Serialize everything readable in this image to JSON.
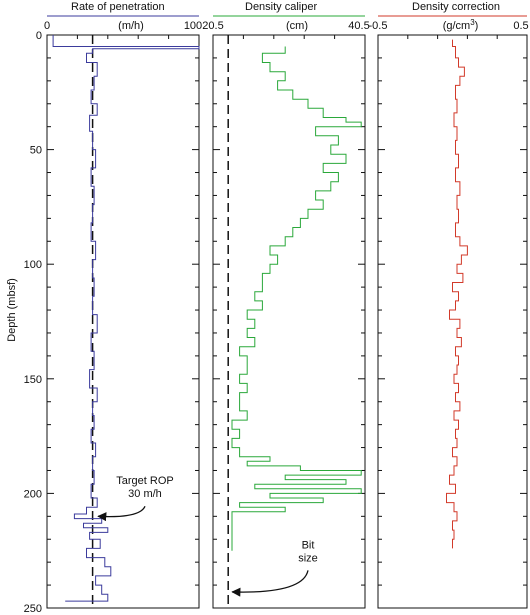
{
  "chart_data": {
    "type": "line",
    "shared_y": {
      "label": "Depth (mbsf)",
      "range": [
        0,
        250
      ],
      "inverted": true,
      "ticks": [
        0,
        50,
        100,
        150,
        200,
        250
      ],
      "tick_labels": [
        "0",
        "50",
        "100",
        "150",
        "200",
        "250"
      ]
    },
    "panels": [
      {
        "title": "Rate of penetration",
        "unit": "(m/h)",
        "xlim": [
          0,
          100
        ],
        "tick_labels": [
          "0",
          "100"
        ],
        "color": "#3b3b9c",
        "ref_line": {
          "x": 30
        },
        "annotation": {
          "lines": [
            "Target ROP",
            "30 m/h"
          ],
          "arrow_to": {
            "x": 31,
            "depth": 210
          }
        },
        "series": {
          "depth": [
            0,
            4,
            5,
            6,
            8,
            12,
            18,
            24,
            30,
            35,
            42,
            50,
            58,
            66,
            74,
            82,
            90,
            98,
            106,
            114,
            122,
            130,
            138,
            146,
            154,
            160,
            166,
            172,
            178,
            184,
            190,
            196,
            202,
            206,
            209,
            211,
            213,
            215,
            217,
            220,
            224,
            228,
            232,
            236,
            240,
            244,
            247
          ],
          "value": [
            4,
            4,
            100,
            30,
            26,
            33,
            31,
            29,
            33,
            28,
            30,
            32,
            29,
            31,
            30,
            29,
            32,
            30,
            31,
            30,
            33,
            29,
            31,
            28,
            33,
            30,
            31,
            29,
            32,
            30,
            31,
            29,
            33,
            26,
            18,
            36,
            24,
            40,
            28,
            35,
            26,
            38,
            42,
            32,
            36,
            40,
            12
          ]
        }
      },
      {
        "title": "Density caliper",
        "unit": "(cm)",
        "xlim": [
          20.5,
          40.5
        ],
        "tick_labels": [
          "20.5",
          "40.5"
        ],
        "color": "#2aa83a",
        "ref_line": {
          "x": 22.5
        },
        "annotation": {
          "lines": [
            "Bit",
            "size"
          ],
          "arrow_to": {
            "x": 22.5,
            "depth": 243
          }
        },
        "series": {
          "depth": [
            5,
            8,
            12,
            16,
            20,
            24,
            28,
            32,
            36,
            38,
            40,
            44,
            48,
            52,
            56,
            60,
            64,
            68,
            72,
            76,
            80,
            84,
            88,
            92,
            96,
            100,
            104,
            108,
            112,
            116,
            120,
            124,
            128,
            132,
            136,
            140,
            144,
            148,
            152,
            156,
            160,
            164,
            168,
            172,
            176,
            180,
            184,
            186,
            188,
            190,
            192,
            194,
            196,
            198,
            200,
            202,
            204,
            206,
            208,
            210,
            214,
            218,
            222,
            225
          ],
          "value": [
            30,
            27,
            28,
            30,
            29,
            31,
            33,
            35,
            38,
            40,
            34,
            37,
            36,
            38,
            35,
            37,
            36,
            34,
            35,
            33,
            32,
            31,
            30,
            28,
            29,
            28,
            27,
            27,
            26,
            27,
            25,
            26,
            25,
            26,
            24,
            25,
            25,
            24,
            25,
            24,
            24,
            25,
            23,
            24,
            23,
            24,
            28,
            25,
            32,
            40,
            30,
            38,
            26,
            40,
            28,
            35,
            24,
            30,
            23,
            23,
            23,
            23,
            23,
            23
          ]
        }
      },
      {
        "title": "Density correction",
        "unit": "(g/cm",
        "unit_sup": "3",
        "unit_end": ")",
        "xlim": [
          -0.5,
          0.5
        ],
        "tick_labels": [
          "-0.5",
          "0.5"
        ],
        "color": "#d23a2a",
        "series": {
          "depth": [
            2,
            5,
            10,
            14,
            18,
            22,
            28,
            34,
            40,
            46,
            52,
            58,
            64,
            70,
            76,
            82,
            88,
            92,
            96,
            100,
            104,
            108,
            112,
            116,
            120,
            124,
            128,
            132,
            136,
            140,
            144,
            148,
            152,
            156,
            160,
            164,
            168,
            172,
            176,
            180,
            184,
            188,
            192,
            196,
            200,
            204,
            208,
            212,
            216,
            220,
            224
          ],
          "value": [
            0,
            0.02,
            0.04,
            0.08,
            0.05,
            0.02,
            0.03,
            0.01,
            0.03,
            0.02,
            0.04,
            0.02,
            0.05,
            0.03,
            0.04,
            0.02,
            0.05,
            0.1,
            0.06,
            0.03,
            0.07,
            0.0,
            0.04,
            0.02,
            -0.02,
            0.05,
            0.03,
            0.06,
            0.02,
            0.04,
            0.03,
            0.01,
            0.04,
            0.02,
            0.05,
            0.01,
            0.04,
            0.02,
            0.03,
            0.0,
            0.03,
            0.01,
            -0.02,
            0.02,
            -0.04,
            0.01,
            0.03,
            0.0,
            0.01,
            0.0,
            0.0
          ]
        }
      }
    ]
  }
}
